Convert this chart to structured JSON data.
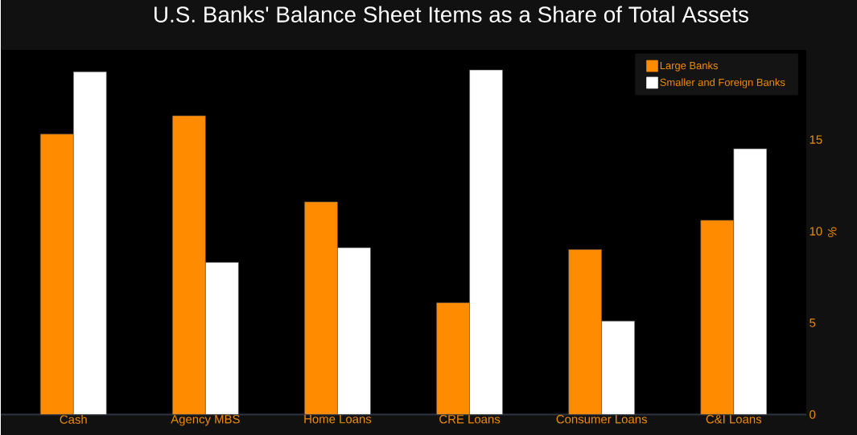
{
  "chart_data": {
    "type": "bar",
    "title": "U.S. Banks' Balance Sheet Items as a Share of Total Assets",
    "ylabel": "%",
    "categories": [
      "Cash",
      "Agency MBS",
      "Home Loans",
      "CRE Loans",
      "Consumer Loans",
      "C&I Loans"
    ],
    "series": [
      {
        "name": "Large Banks",
        "color": "#ff8c00",
        "values": [
          15.3,
          16.3,
          11.6,
          6.1,
          9.0,
          10.6
        ]
      },
      {
        "name": "Smaller and Foreign Banks",
        "color": "#ffffff",
        "values": [
          18.7,
          8.3,
          9.1,
          18.8,
          5.1,
          14.5
        ]
      }
    ],
    "ylim": [
      0,
      19.9
    ],
    "yticks": [
      0,
      5,
      10,
      15
    ],
    "grid": false,
    "legend": "top right"
  }
}
